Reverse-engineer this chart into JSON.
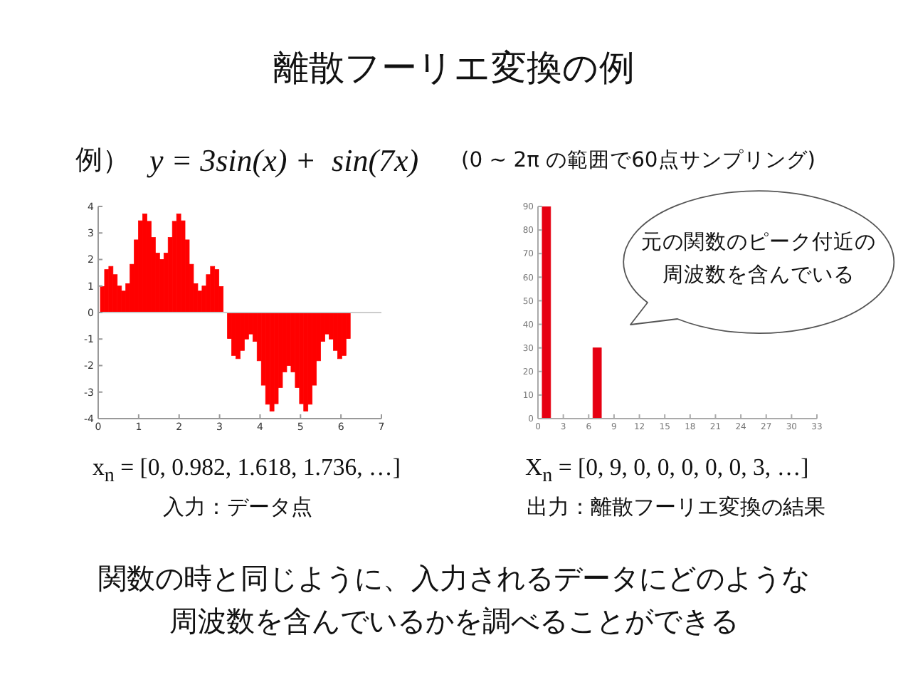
{
  "chart_data": [
    {
      "type": "bar",
      "title": "離散フーリエ変換の例",
      "subtitle": "y = 3sin(x) +  sin(7x)",
      "annotations": [
        "例）",
        "(0 ~ 2π の範囲で60点サンプリング)",
        "x$_{n}$ = [0, 0.982, 1.618, 1.736, …]",
        "入力：データ点"
      ],
      "x": [
        0,
        0.105,
        0.209,
        0.314,
        0.419,
        0.524,
        0.628,
        0.733,
        0.838,
        0.942,
        1.047,
        1.152,
        1.257,
        1.361,
        1.466,
        1.571,
        1.676,
        1.78,
        1.885,
        1.99,
        2.094,
        2.199,
        2.304,
        2.409,
        2.513,
        2.618,
        2.723,
        2.827,
        2.932,
        3.037,
        3.142,
        3.246,
        3.351,
        3.456,
        3.56,
        3.665,
        3.77,
        3.875,
        3.979,
        4.084,
        4.189,
        4.294,
        4.398,
        4.503,
        4.608,
        4.712,
        4.817,
        4.922,
        5.027,
        5.131,
        5.236,
        5.341,
        5.445,
        5.55,
        5.655,
        5.76,
        5.864,
        5.969,
        6.074,
        6.178
      ],
      "values": [
        0,
        0.98,
        1.62,
        1.74,
        1.43,
        1,
        0.81,
        1.09,
        1.82,
        2.74,
        3.46,
        3.72,
        3.44,
        2.83,
        2.24,
        2,
        2.24,
        2.83,
        3.44,
        3.72,
        3.46,
        2.74,
        1.82,
        1.09,
        0.81,
        1,
        1.43,
        1.74,
        1.62,
        0.98,
        0,
        -0.98,
        -1.62,
        -1.74,
        -1.43,
        -1,
        -0.81,
        -1.09,
        -1.82,
        -2.74,
        -3.46,
        -3.72,
        -3.44,
        -2.83,
        -2.24,
        -2,
        -2.24,
        -2.83,
        -3.44,
        -3.72,
        -3.46,
        -2.74,
        -1.82,
        -1.09,
        -0.81,
        -1,
        -1.43,
        -1.74,
        -1.62,
        -0.98
      ],
      "color": "#ff0000",
      "xlim": [
        0,
        7
      ],
      "ylim": [
        -4,
        4
      ],
      "xticks": [
        0,
        1,
        2,
        3,
        4,
        5,
        6,
        7
      ],
      "yticks": [
        -4,
        -3,
        -2,
        -1,
        0,
        1,
        2,
        3,
        4
      ],
      "ref_lines": [
        {
          "axis": "y",
          "value": 0,
          "color": "#cccccc"
        }
      ]
    },
    {
      "type": "bar",
      "annotations": [
        "元の関数のピーク付近の",
        "周波数を含んでいる",
        "X$_{n}$ = [0, 9, 0, 0, 0, 0, 0, 3, …]",
        "出力：離散フーリエ変換の結果",
        "関数の時と同じように、入力されるデータにどのような",
        "周波数を含んでいるかを調べることができる"
      ],
      "x": [
        0,
        1,
        2,
        3,
        4,
        5,
        6,
        7,
        8,
        9,
        10,
        11,
        12,
        13,
        14,
        15,
        16,
        17,
        18,
        19,
        20,
        21,
        22,
        23,
        24,
        25,
        26,
        27,
        28,
        29,
        30
      ],
      "values": [
        0,
        90,
        0,
        0,
        0,
        0,
        0,
        30,
        0,
        0,
        0,
        0,
        0,
        0,
        0,
        0,
        0,
        0,
        0,
        0,
        0,
        0,
        0,
        0,
        0,
        0,
        0,
        0,
        0,
        0,
        0
      ],
      "color": "#e60012",
      "xlim": [
        0,
        33
      ],
      "ylim": [
        0,
        90
      ],
      "xticks": [
        0,
        3,
        6,
        9,
        12,
        15,
        18,
        21,
        24,
        27,
        30,
        33
      ],
      "yticks": [
        0,
        10,
        20,
        30,
        40,
        50,
        60,
        70,
        80,
        90
      ]
    }
  ]
}
